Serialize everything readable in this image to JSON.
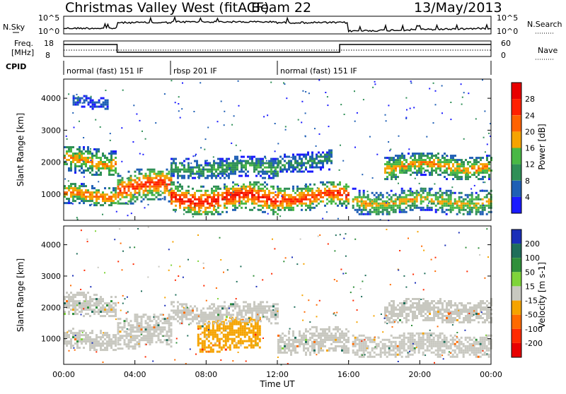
{
  "header": {
    "title": "Christmas Valley West (fitACF)",
    "beam": "Beam 22",
    "date": "13/May/2013"
  },
  "top_panels": {
    "nsky_label": "N.Sky",
    "nsearch_label": "N.Search",
    "nsky_ticks": [
      "10^5",
      "10^0"
    ],
    "freq_label_line1": "Freq.",
    "freq_label_line2": "[MHz]",
    "freq_ticks": [
      "18",
      "8"
    ],
    "nave_label": "Nave",
    "nave_ticks": [
      "60",
      "0"
    ],
    "cpid_label": "CPID",
    "cpid_segments": [
      {
        "start_h": 0,
        "end_h": 6,
        "label": "normal (fast) 151 IF"
      },
      {
        "start_h": 6,
        "end_h": 12,
        "label": "rbsp 201 IF"
      },
      {
        "start_h": 12,
        "end_h": 24,
        "label": "normal (fast) 151 IF"
      }
    ]
  },
  "chart_data": [
    {
      "type": "heatmap",
      "panel": "power",
      "ylabel": "Slant Range [km]",
      "yticks": [
        1000,
        2000,
        3000,
        4000
      ],
      "ylim": [
        180,
        4600
      ],
      "xlim": [
        0,
        24
      ],
      "colorbar_label": "Power [dB]",
      "colorbar_ticks": [
        "4",
        "8",
        "12",
        "16",
        "20",
        "24",
        "28"
      ],
      "colorbar_colors": [
        "#1a1aff",
        "#1f5fb5",
        "#2f8f57",
        "#49b845",
        "#f5a300",
        "#ff6200",
        "#ff2000",
        "#e80000"
      ],
      "bands": [
        {
          "t0": 0.0,
          "t1": 2.9,
          "r0": 1600,
          "r1": 2500,
          "peak": 20
        },
        {
          "t0": 0.0,
          "t1": 2.9,
          "r0": 650,
          "r1": 1350,
          "peak": 22
        },
        {
          "t0": 3.0,
          "t1": 6.0,
          "r0": 700,
          "r1": 1800,
          "peak": 26
        },
        {
          "t0": 6.0,
          "t1": 12.0,
          "r0": 400,
          "r1": 1400,
          "peak": 28
        },
        {
          "t0": 6.0,
          "t1": 12.0,
          "r0": 1500,
          "r1": 2200,
          "peak": 12
        },
        {
          "t0": 12.0,
          "t1": 16.0,
          "r0": 500,
          "r1": 1400,
          "peak": 26
        },
        {
          "t0": 12.0,
          "t1": 15.0,
          "r0": 1700,
          "r1": 2400,
          "peak": 10
        },
        {
          "t0": 16.2,
          "t1": 24.0,
          "r0": 400,
          "r1": 1200,
          "peak": 18
        },
        {
          "t0": 18.0,
          "t1": 24.0,
          "r0": 1500,
          "r1": 2300,
          "peak": 20
        },
        {
          "t0": 0.5,
          "t1": 2.5,
          "r0": 3700,
          "r1": 4100,
          "peak": 6
        }
      ]
    },
    {
      "type": "heatmap",
      "panel": "velocity",
      "ylabel": "Slant Range [km]",
      "yticks": [
        1000,
        2000,
        3000,
        4000
      ],
      "ylim": [
        180,
        4600
      ],
      "xlim": [
        0,
        24
      ],
      "xticks": [
        "00:00",
        "04:00",
        "08:00",
        "12:00",
        "16:00",
        "20:00",
        "00:00"
      ],
      "xlabel": "Time UT",
      "colorbar_label": "Velocity [m s-1]",
      "colorbar_ticks": [
        "200",
        "100",
        "50",
        "15",
        "-15",
        "-50",
        "-100",
        "-200"
      ],
      "colorbar_colors": [
        "#1a2fb8",
        "#1f6e5a",
        "#2f8f3a",
        "#7fd43a",
        "#c8c8c0",
        "#f5a300",
        "#ff6a00",
        "#ff2a00",
        "#e80000"
      ],
      "bands": [
        {
          "t0": 0.0,
          "t1": 2.9,
          "r0": 1700,
          "r1": 2500,
          "v": 0
        },
        {
          "t0": 0.0,
          "t1": 2.9,
          "r0": 650,
          "r1": 1350,
          "v": 0
        },
        {
          "t0": 3.0,
          "t1": 6.0,
          "r0": 700,
          "r1": 1800,
          "v": 0
        },
        {
          "t0": 7.5,
          "t1": 11.0,
          "r0": 600,
          "r1": 1700,
          "v": -40
        },
        {
          "t0": 6.0,
          "t1": 12.0,
          "r0": 1500,
          "r1": 2200,
          "v": 0
        },
        {
          "t0": 12.0,
          "t1": 16.0,
          "r0": 500,
          "r1": 1400,
          "v": 0
        },
        {
          "t0": 16.2,
          "t1": 24.0,
          "r0": 400,
          "r1": 1200,
          "v": 0
        },
        {
          "t0": 18.0,
          "t1": 24.0,
          "r0": 1500,
          "r1": 2300,
          "v": 0
        }
      ]
    }
  ]
}
